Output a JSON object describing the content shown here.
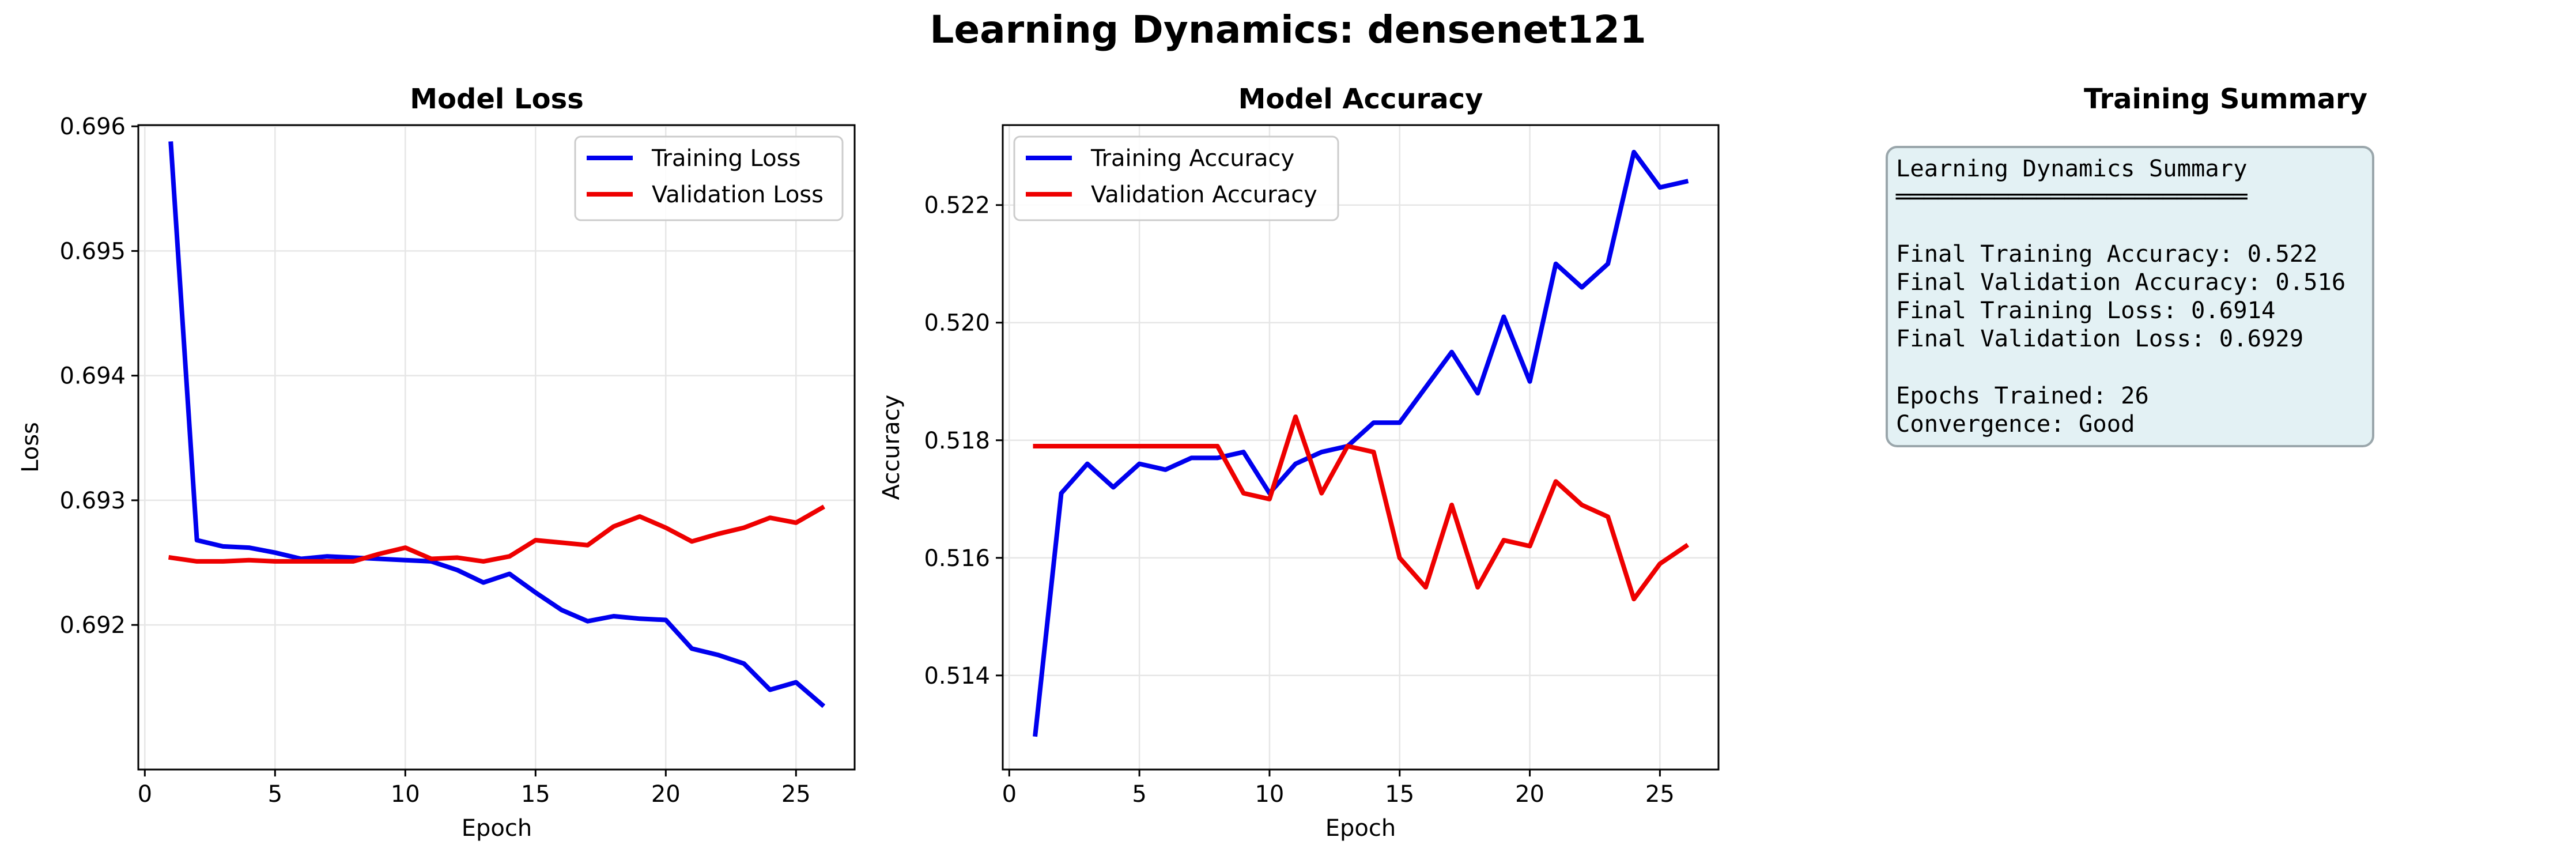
{
  "figure": {
    "title": "Learning Dynamics: densenet121"
  },
  "chart_data": [
    {
      "type": "line",
      "title": "Model Loss",
      "xlabel": "Epoch",
      "ylabel": "Loss",
      "xlim": [
        -0.25,
        27.25
      ],
      "ylim": [
        0.69084,
        0.69601
      ],
      "xticks": [
        0,
        5,
        10,
        15,
        20,
        25
      ],
      "yticks": [
        0.692,
        0.693,
        0.694,
        0.695,
        0.696
      ],
      "ytick_labels": [
        "0.692",
        "0.693",
        "0.694",
        "0.695",
        "0.696"
      ],
      "grid": true,
      "legend": "upper right",
      "x": [
        1,
        2,
        3,
        4,
        5,
        6,
        7,
        8,
        9,
        10,
        11,
        12,
        13,
        14,
        15,
        16,
        17,
        18,
        19,
        20,
        21,
        22,
        23,
        24,
        25,
        26
      ],
      "series": [
        {
          "name": "Training Loss",
          "color": "#0000ee",
          "values": [
            0.69586,
            0.69268,
            0.69263,
            0.69262,
            0.69258,
            0.69253,
            0.69255,
            0.69254,
            0.69253,
            0.69252,
            0.69251,
            0.69244,
            0.69234,
            0.69241,
            0.69226,
            0.69212,
            0.69203,
            0.69207,
            0.69205,
            0.69204,
            0.69181,
            0.69176,
            0.69169,
            0.69148,
            0.69154,
            0.69136
          ]
        },
        {
          "name": "Validation Loss",
          "color": "#ee0000",
          "values": [
            0.69254,
            0.69251,
            0.69251,
            0.69252,
            0.69251,
            0.69251,
            0.69251,
            0.69251,
            0.69257,
            0.69262,
            0.69253,
            0.69254,
            0.69251,
            0.69255,
            0.69268,
            0.69266,
            0.69264,
            0.69279,
            0.69287,
            0.69278,
            0.69267,
            0.69273,
            0.69278,
            0.69286,
            0.69282,
            0.69294
          ]
        }
      ]
    },
    {
      "type": "line",
      "title": "Model Accuracy",
      "xlabel": "Epoch",
      "ylabel": "Accuracy",
      "xlim": [
        -0.25,
        27.25
      ],
      "ylim": [
        0.5124,
        0.52336
      ],
      "xticks": [
        0,
        5,
        10,
        15,
        20,
        25
      ],
      "yticks": [
        0.514,
        0.516,
        0.518,
        0.52,
        0.522
      ],
      "ytick_labels": [
        "0.514",
        "0.516",
        "0.518",
        "0.520",
        "0.522"
      ],
      "grid": true,
      "legend": "upper left",
      "x": [
        1,
        2,
        3,
        4,
        5,
        6,
        7,
        8,
        9,
        10,
        11,
        12,
        13,
        14,
        15,
        16,
        17,
        18,
        19,
        20,
        21,
        22,
        23,
        24,
        25,
        26
      ],
      "series": [
        {
          "name": "Training Accuracy",
          "color": "#0000ee",
          "values": [
            0.513,
            0.5171,
            0.5176,
            0.5172,
            0.5176,
            0.5175,
            0.5177,
            0.5177,
            0.5178,
            0.5171,
            0.5176,
            0.5178,
            0.5179,
            0.5183,
            0.5183,
            0.5189,
            0.5195,
            0.5188,
            0.5201,
            0.519,
            0.521,
            0.5206,
            0.521,
            0.5229,
            0.5223,
            0.5224
          ]
        },
        {
          "name": "Validation Accuracy",
          "color": "#ee0000",
          "values": [
            0.5179,
            0.5179,
            0.5179,
            0.5179,
            0.5179,
            0.5179,
            0.5179,
            0.5179,
            0.5171,
            0.517,
            0.5184,
            0.5171,
            0.5179,
            0.5178,
            0.516,
            0.5155,
            0.5169,
            0.5155,
            0.5163,
            0.5162,
            0.5173,
            0.5169,
            0.5167,
            0.5153,
            0.5159,
            0.5162
          ]
        }
      ]
    }
  ],
  "summary": {
    "title": "Training Summary",
    "heading": "Learning Dynamics Summary",
    "underline": "═════════════════════════",
    "lines": [
      "Final Training Accuracy: 0.522",
      "Final Validation Accuracy: 0.516",
      "Final Training Loss: 0.6914",
      "Final Validation Loss: 0.6929",
      "Epochs Trained: 26",
      "Convergence: Good"
    ]
  }
}
